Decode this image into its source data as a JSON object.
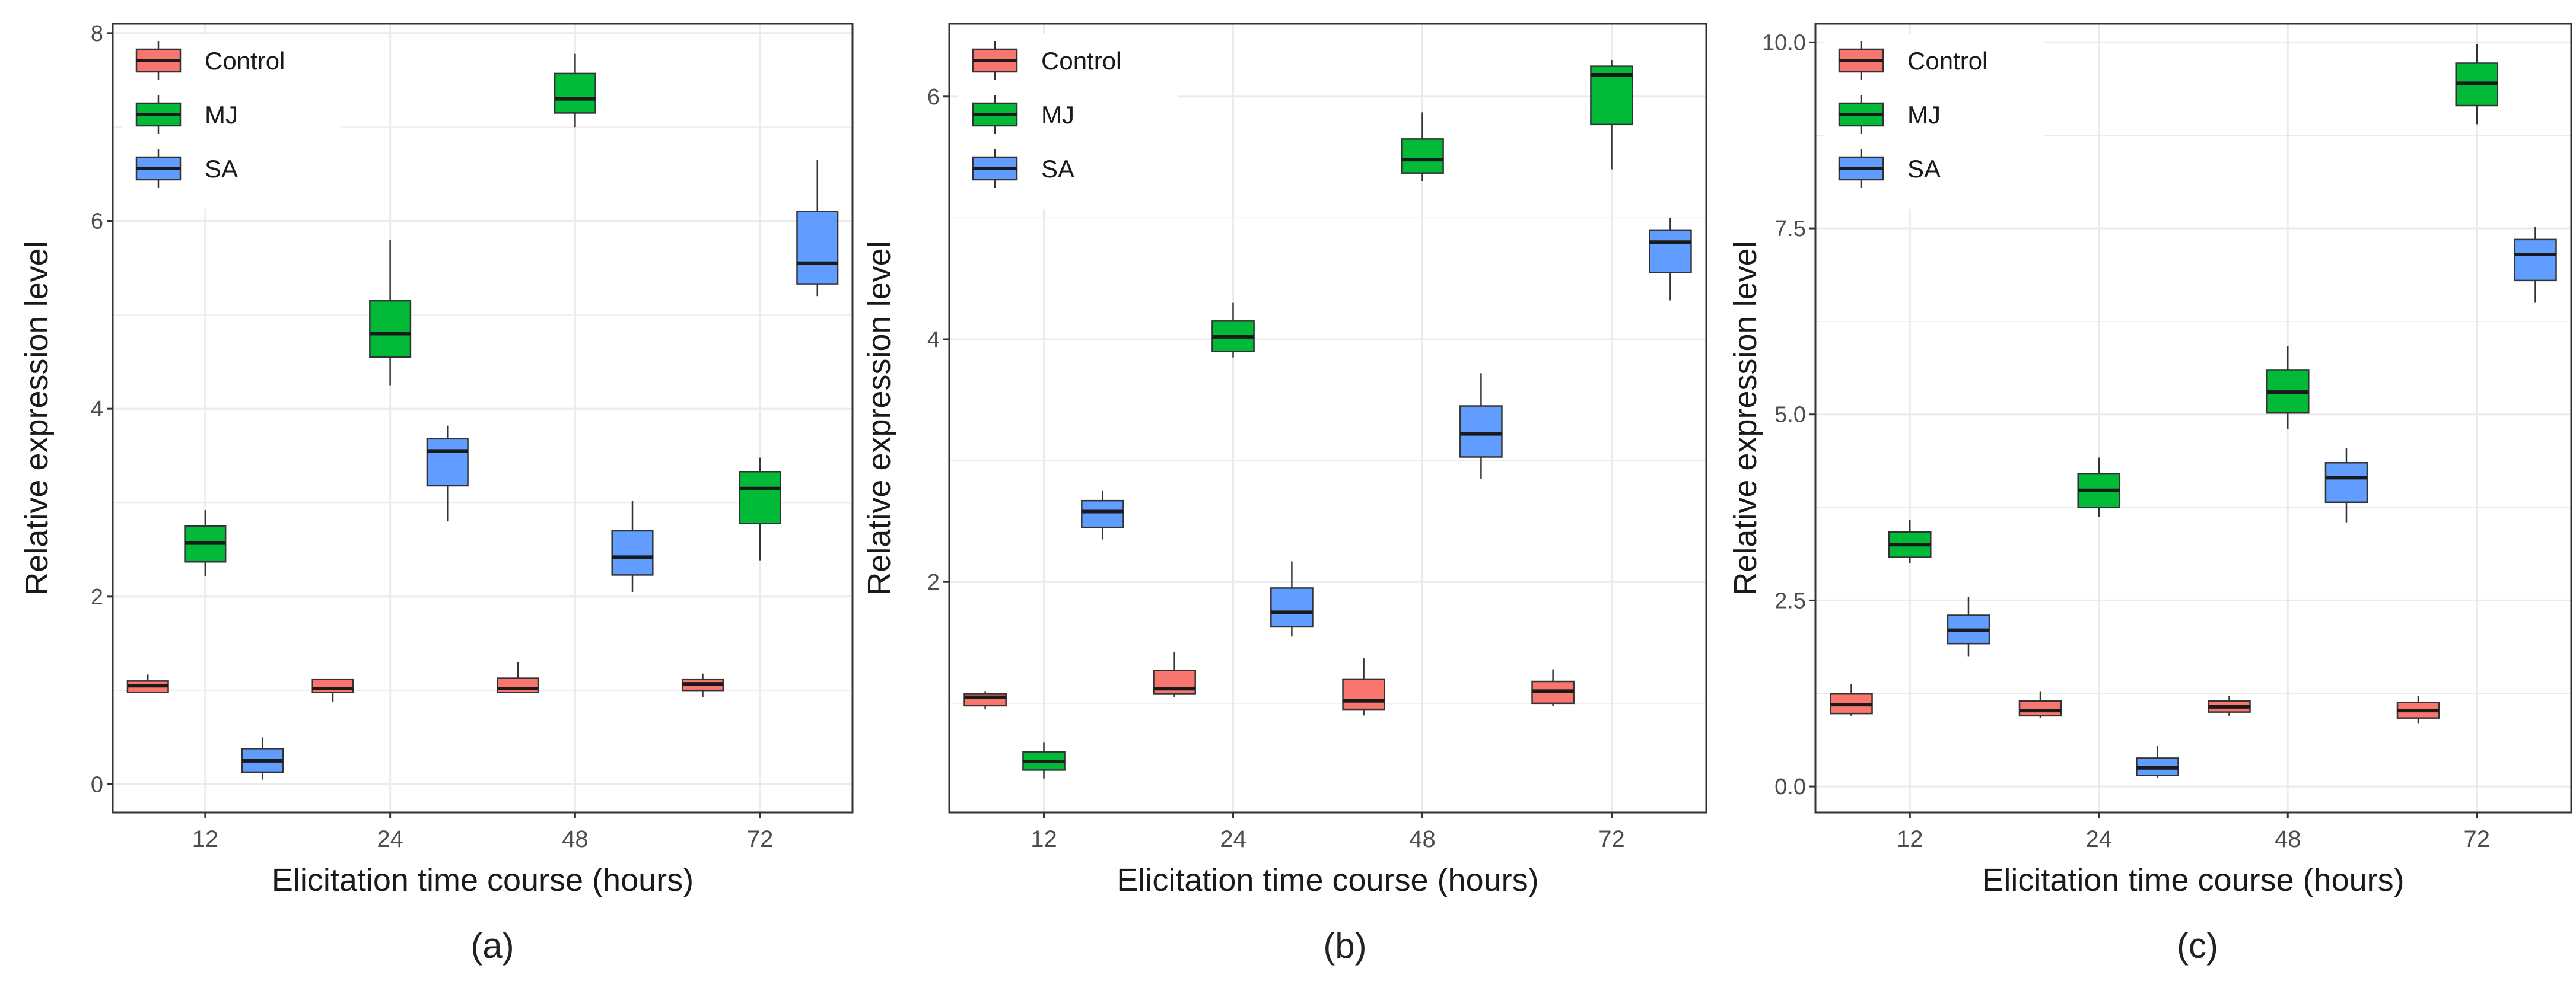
{
  "colors": {
    "Control": "#F8766D",
    "MJ": "#00BA38",
    "SA": "#619CFF"
  },
  "chart_data": [
    {
      "type": "boxplot",
      "caption": "(a)",
      "xlabel": "Elicitation time course (hours)",
      "ylabel": "Relative expression level",
      "categories": [
        "12",
        "24",
        "48",
        "72"
      ],
      "ylim": [
        -0.3,
        8.1
      ],
      "yticks": [
        0,
        2,
        4,
        6,
        8
      ],
      "ytick_labels": [
        "0",
        "2",
        "4",
        "6",
        "8"
      ],
      "legend": {
        "placement": "top-left",
        "entries": [
          "Control",
          "MJ",
          "SA"
        ]
      },
      "grid": true,
      "series": [
        {
          "name": "Control",
          "boxes": [
            {
              "min": 0.97,
              "q1": 0.98,
              "median": 1.05,
              "q3": 1.1,
              "max": 1.17
            },
            {
              "min": 0.88,
              "q1": 0.98,
              "median": 1.02,
              "q3": 1.12,
              "max": 1.12
            },
            {
              "min": 0.98,
              "q1": 0.98,
              "median": 1.02,
              "q3": 1.13,
              "max": 1.3
            },
            {
              "min": 0.93,
              "q1": 1.0,
              "median": 1.07,
              "q3": 1.12,
              "max": 1.18
            }
          ]
        },
        {
          "name": "MJ",
          "boxes": [
            {
              "min": 2.22,
              "q1": 2.37,
              "median": 2.57,
              "q3": 2.75,
              "max": 2.92
            },
            {
              "min": 4.25,
              "q1": 4.55,
              "median": 4.8,
              "q3": 5.15,
              "max": 5.8
            },
            {
              "min": 7.0,
              "q1": 7.15,
              "median": 7.3,
              "q3": 7.57,
              "max": 7.78
            },
            {
              "min": 2.38,
              "q1": 2.78,
              "median": 3.15,
              "q3": 3.33,
              "max": 3.48
            }
          ]
        },
        {
          "name": "SA",
          "boxes": [
            {
              "min": 0.05,
              "q1": 0.13,
              "median": 0.25,
              "q3": 0.38,
              "max": 0.5
            },
            {
              "min": 2.8,
              "q1": 3.18,
              "median": 3.55,
              "q3": 3.68,
              "max": 3.82
            },
            {
              "min": 2.05,
              "q1": 2.23,
              "median": 2.42,
              "q3": 2.7,
              "max": 3.02
            },
            {
              "min": 5.2,
              "q1": 5.33,
              "median": 5.55,
              "q3": 6.1,
              "max": 6.65
            }
          ]
        }
      ]
    },
    {
      "type": "boxplot",
      "caption": "(b)",
      "xlabel": "Elicitation time course (hours)",
      "ylabel": "Relative expression level",
      "categories": [
        "12",
        "24",
        "48",
        "72"
      ],
      "ylim": [
        0.1,
        6.6
      ],
      "yticks": [
        2,
        4,
        6
      ],
      "ytick_labels": [
        "2",
        "4",
        "6"
      ],
      "legend": {
        "placement": "top-left",
        "entries": [
          "Control",
          "MJ",
          "SA"
        ]
      },
      "grid": true,
      "series": [
        {
          "name": "Control",
          "boxes": [
            {
              "min": 0.95,
              "q1": 0.98,
              "median": 1.05,
              "q3": 1.08,
              "max": 1.1
            },
            {
              "min": 1.05,
              "q1": 1.08,
              "median": 1.12,
              "q3": 1.27,
              "max": 1.42
            },
            {
              "min": 0.9,
              "q1": 0.95,
              "median": 1.02,
              "q3": 1.2,
              "max": 1.37
            },
            {
              "min": 0.98,
              "q1": 1.0,
              "median": 1.1,
              "q3": 1.18,
              "max": 1.28
            }
          ]
        },
        {
          "name": "MJ",
          "boxes": [
            {
              "min": 0.38,
              "q1": 0.45,
              "median": 0.52,
              "q3": 0.6,
              "max": 0.68
            },
            {
              "min": 3.85,
              "q1": 3.9,
              "median": 4.02,
              "q3": 4.15,
              "max": 4.3
            },
            {
              "min": 5.3,
              "q1": 5.37,
              "median": 5.48,
              "q3": 5.65,
              "max": 5.87
            },
            {
              "min": 5.4,
              "q1": 5.77,
              "median": 6.18,
              "q3": 6.25,
              "max": 6.3
            }
          ]
        },
        {
          "name": "SA",
          "boxes": [
            {
              "min": 2.35,
              "q1": 2.45,
              "median": 2.58,
              "q3": 2.67,
              "max": 2.75
            },
            {
              "min": 1.55,
              "q1": 1.63,
              "median": 1.75,
              "q3": 1.95,
              "max": 2.17
            },
            {
              "min": 2.85,
              "q1": 3.03,
              "median": 3.22,
              "q3": 3.45,
              "max": 3.72
            },
            {
              "min": 4.32,
              "q1": 4.55,
              "median": 4.8,
              "q3": 4.9,
              "max": 5.0
            }
          ]
        }
      ]
    },
    {
      "type": "boxplot",
      "caption": "(c)",
      "xlabel": "Elicitation time course (hours)",
      "ylabel": "Relative expression level",
      "categories": [
        "12",
        "24",
        "48",
        "72"
      ],
      "ylim": [
        -0.35,
        10.25
      ],
      "yticks": [
        0,
        2.5,
        5,
        7.5,
        10
      ],
      "ytick_labels": [
        "0.0",
        "2.5",
        "5.0",
        "7.5",
        "10.0"
      ],
      "legend": {
        "placement": "top-left",
        "entries": [
          "Control",
          "MJ",
          "SA"
        ]
      },
      "grid": true,
      "series": [
        {
          "name": "Control",
          "boxes": [
            {
              "min": 0.95,
              "q1": 0.98,
              "median": 1.1,
              "q3": 1.25,
              "max": 1.38
            },
            {
              "min": 0.92,
              "q1": 0.95,
              "median": 1.02,
              "q3": 1.15,
              "max": 1.28
            },
            {
              "min": 0.95,
              "q1": 1.0,
              "median": 1.07,
              "q3": 1.15,
              "max": 1.22
            },
            {
              "min": 0.85,
              "q1": 0.92,
              "median": 1.02,
              "q3": 1.13,
              "max": 1.22
            }
          ]
        },
        {
          "name": "MJ",
          "boxes": [
            {
              "min": 3.0,
              "q1": 3.08,
              "median": 3.25,
              "q3": 3.42,
              "max": 3.58
            },
            {
              "min": 3.62,
              "q1": 3.75,
              "median": 3.98,
              "q3": 4.2,
              "max": 4.42
            },
            {
              "min": 4.8,
              "q1": 5.02,
              "median": 5.3,
              "q3": 5.6,
              "max": 5.92
            },
            {
              "min": 8.9,
              "q1": 9.15,
              "median": 9.45,
              "q3": 9.72,
              "max": 9.98
            }
          ]
        },
        {
          "name": "SA",
          "boxes": [
            {
              "min": 1.75,
              "q1": 1.92,
              "median": 2.1,
              "q3": 2.3,
              "max": 2.55
            },
            {
              "min": 0.12,
              "q1": 0.15,
              "median": 0.25,
              "q3": 0.38,
              "max": 0.55
            },
            {
              "min": 3.55,
              "q1": 3.82,
              "median": 4.15,
              "q3": 4.35,
              "max": 4.55
            },
            {
              "min": 6.5,
              "q1": 6.8,
              "median": 7.15,
              "q3": 7.35,
              "max": 7.52
            }
          ]
        }
      ]
    }
  ]
}
